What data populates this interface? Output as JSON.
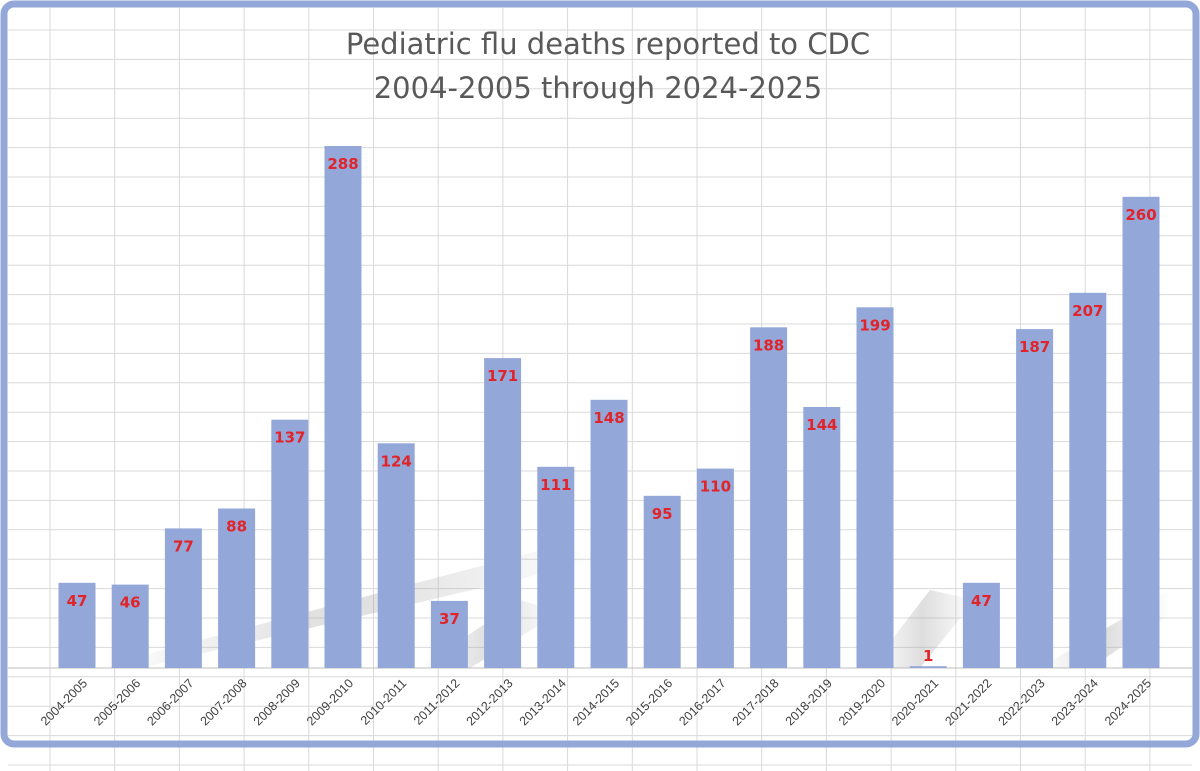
{
  "chart_data": {
    "type": "bar",
    "title": "Pediatric flu deaths reported to CDC",
    "subtitle": "2004-2005 through 2024-2025",
    "xlabel": "",
    "ylabel": "",
    "ylim": [
      0,
      300
    ],
    "grid": true,
    "legend": "none",
    "categories": [
      "2004-2005",
      "2005-2006",
      "2006-2007",
      "2007-2008",
      "2008-2009",
      "2009-2010",
      "2010-2011",
      "2011-2012",
      "2012-2013",
      "2013-2014",
      "2014-2015",
      "2015-2016",
      "2016-2017",
      "2017-2018",
      "2018-2019",
      "2019-2020",
      "2020-2021",
      "2021-2022",
      "2022-2023",
      "2023-2024",
      "2024-2025"
    ],
    "values": [
      47,
      46,
      77,
      88,
      137,
      288,
      124,
      37,
      171,
      111,
      148,
      95,
      110,
      188,
      144,
      199,
      1,
      47,
      187,
      207,
      260
    ],
    "data_labels": [
      "47",
      "46",
      "77",
      "88",
      "137",
      "288",
      "124",
      "37",
      "171",
      "111",
      "148",
      "95",
      "110",
      "188",
      "144",
      "199",
      "1",
      "47",
      "187",
      "207",
      "260"
    ],
    "colors": {
      "bar": "#94a7d9",
      "frame": "#94a7d9",
      "grid": "#d9d9d9",
      "label": "#e0242a",
      "title": "#595959"
    }
  }
}
